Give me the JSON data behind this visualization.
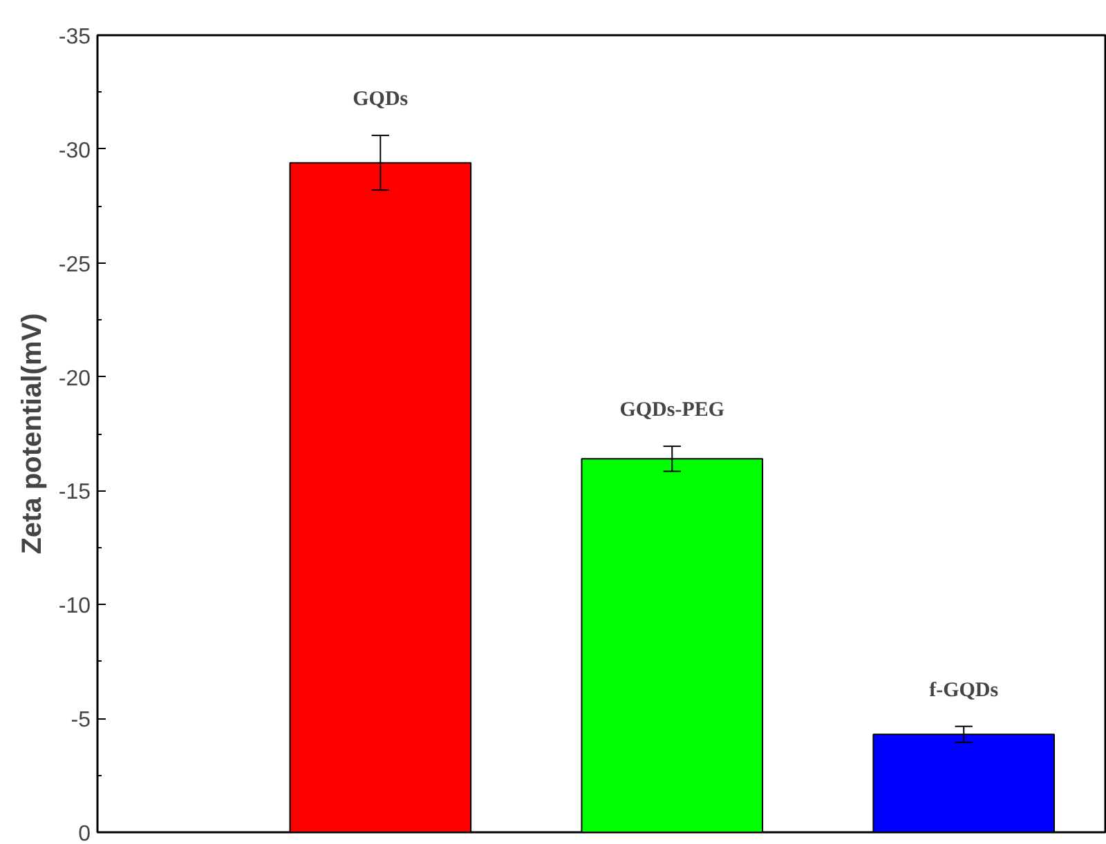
{
  "chart_data": {
    "type": "bar",
    "ylabel": "Zeta potential(mV)",
    "categories": [
      "GQDs",
      "GQDs-PEG",
      "f-GQDs"
    ],
    "values": [
      -29.4,
      -16.4,
      -4.3
    ],
    "colors": [
      "#ff0000",
      "#00ff00",
      "#0000ff"
    ],
    "errors": [
      1.2,
      0.55,
      0.35
    ],
    "ylim": [
      0,
      -35
    ],
    "yticks": [
      0,
      -5,
      -10,
      -15,
      -20,
      -25,
      -30,
      -35
    ],
    "grid": false
  }
}
